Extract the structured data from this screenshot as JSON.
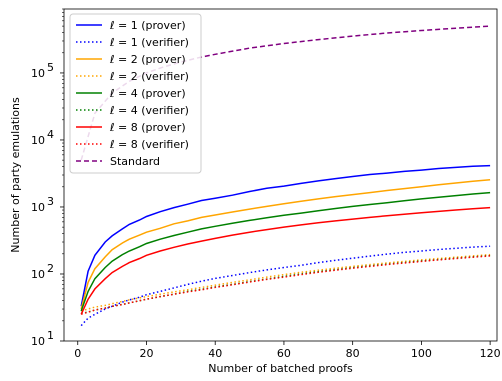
{
  "chart_data": {
    "type": "line",
    "xlabel": "Number of batched proofs",
    "ylabel": "Number of party emulations",
    "yscale": "log",
    "xlim": [
      -4,
      122
    ],
    "ylim": [
      10,
      900000
    ],
    "x_ticks": [
      0,
      20,
      40,
      60,
      80,
      100,
      120
    ],
    "y_ticks": [
      10,
      100,
      1000,
      10000,
      100000
    ],
    "y_tick_labels": [
      {
        "base": "10",
        "exp": "1"
      },
      {
        "base": "10",
        "exp": "2"
      },
      {
        "base": "10",
        "exp": "3"
      },
      {
        "base": "10",
        "exp": "4"
      },
      {
        "base": "10",
        "exp": "5"
      }
    ],
    "grid": false,
    "legend_position": "upper-left",
    "legend": [
      {
        "label": "ℓ = 1 (prover)",
        "color": "#0000ff",
        "style": "solid"
      },
      {
        "label": "ℓ = 1 (verifier)",
        "color": "#0000ff",
        "style": "dotted"
      },
      {
        "label": "ℓ = 2 (prover)",
        "color": "#ffa500",
        "style": "solid"
      },
      {
        "label": "ℓ = 2 (verifier)",
        "color": "#ffa500",
        "style": "dotted"
      },
      {
        "label": "ℓ = 4 (prover)",
        "color": "#008000",
        "style": "solid"
      },
      {
        "label": "ℓ = 4 (verifier)",
        "color": "#008000",
        "style": "dotted"
      },
      {
        "label": "ℓ = 8 (prover)",
        "color": "#ff0000",
        "style": "solid"
      },
      {
        "label": "ℓ = 8 (verifier)",
        "color": "#ff0000",
        "style": "dotted"
      },
      {
        "label": "Standard",
        "color": "#800080",
        "style": "dashed"
      }
    ],
    "series": [
      {
        "name": "ℓ = 1 (prover)",
        "color": "#0000ff",
        "style": "solid",
        "x": [
          1,
          3,
          5,
          8,
          10,
          13,
          15,
          18,
          20,
          24,
          28,
          32,
          36,
          40,
          45,
          50,
          55,
          60,
          65,
          70,
          75,
          80,
          85,
          90,
          95,
          100,
          105,
          110,
          115,
          120
        ],
        "y": [
          33,
          110,
          190,
          300,
          370,
          470,
          550,
          640,
          720,
          850,
          980,
          1100,
          1250,
          1350,
          1500,
          1700,
          1900,
          2050,
          2250,
          2450,
          2650,
          2850,
          3050,
          3200,
          3400,
          3550,
          3750,
          3900,
          4050,
          4150
        ]
      },
      {
        "name": "ℓ = 1 (verifier)",
        "color": "#0000ff",
        "style": "dotted",
        "x": [
          1,
          3,
          5,
          8,
          10,
          13,
          15,
          18,
          20,
          24,
          28,
          32,
          36,
          40,
          45,
          50,
          55,
          60,
          65,
          70,
          75,
          80,
          85,
          90,
          95,
          100,
          105,
          110,
          115,
          120
        ],
        "y": [
          17,
          22,
          25,
          30,
          33,
          38,
          41,
          45,
          49,
          55,
          62,
          70,
          78,
          86,
          95,
          105,
          115,
          125,
          135,
          148,
          160,
          172,
          185,
          198,
          210,
          220,
          232,
          242,
          252,
          260
        ]
      },
      {
        "name": "ℓ = 2 (prover)",
        "color": "#ffa500",
        "style": "solid",
        "x": [
          1,
          3,
          5,
          8,
          10,
          13,
          15,
          18,
          20,
          24,
          28,
          32,
          36,
          40,
          45,
          50,
          55,
          60,
          65,
          70,
          75,
          80,
          85,
          90,
          95,
          100,
          105,
          110,
          115,
          120
        ],
        "y": [
          30,
          75,
          120,
          180,
          230,
          290,
          330,
          380,
          420,
          480,
          560,
          620,
          700,
          760,
          840,
          930,
          1020,
          1120,
          1220,
          1320,
          1430,
          1530,
          1640,
          1760,
          1880,
          2000,
          2140,
          2280,
          2420,
          2550
        ]
      },
      {
        "name": "ℓ = 2 (verifier)",
        "color": "#ffa500",
        "style": "dotted",
        "x": [
          1,
          3,
          5,
          8,
          10,
          13,
          15,
          18,
          20,
          24,
          28,
          32,
          36,
          40,
          45,
          50,
          55,
          60,
          65,
          70,
          75,
          80,
          85,
          90,
          95,
          100,
          105,
          110,
          115,
          120
        ],
        "y": [
          28,
          30,
          32,
          34,
          36,
          39,
          41,
          44,
          46,
          50,
          54,
          58,
          63,
          68,
          75,
          82,
          90,
          98,
          106,
          114,
          122,
          130,
          138,
          146,
          154,
          162,
          170,
          178,
          186,
          195
        ]
      },
      {
        "name": "ℓ = 4 (prover)",
        "color": "#008000",
        "style": "solid",
        "x": [
          1,
          3,
          5,
          8,
          10,
          13,
          15,
          18,
          20,
          24,
          28,
          32,
          36,
          40,
          45,
          50,
          55,
          60,
          65,
          70,
          75,
          80,
          85,
          90,
          95,
          100,
          105,
          110,
          115,
          120
        ],
        "y": [
          28,
          55,
          85,
          125,
          155,
          195,
          220,
          255,
          285,
          330,
          375,
          420,
          470,
          515,
          570,
          630,
          690,
          750,
          810,
          880,
          950,
          1020,
          1090,
          1160,
          1240,
          1320,
          1400,
          1480,
          1560,
          1640
        ]
      },
      {
        "name": "ℓ = 4 (verifier)",
        "color": "#008000",
        "style": "dotted",
        "x": [
          1,
          3,
          5,
          8,
          10,
          13,
          15,
          18,
          20,
          24,
          28,
          32,
          36,
          40,
          45,
          50,
          55,
          60,
          65,
          70,
          75,
          80,
          85,
          90,
          95,
          100,
          105,
          110,
          115,
          120
        ],
        "y": [
          26,
          27,
          29,
          31,
          33,
          35,
          37,
          40,
          42,
          46,
          50,
          55,
          59,
          64,
          70,
          77,
          84,
          92,
          100,
          108,
          116,
          124,
          132,
          140,
          148,
          156,
          164,
          172,
          180,
          188
        ]
      },
      {
        "name": "ℓ = 8 (prover)",
        "color": "#ff0000",
        "style": "solid",
        "x": [
          1,
          3,
          5,
          8,
          10,
          13,
          15,
          18,
          20,
          24,
          28,
          32,
          36,
          40,
          45,
          50,
          55,
          60,
          65,
          70,
          75,
          80,
          85,
          90,
          95,
          100,
          105,
          110,
          115,
          120
        ],
        "y": [
          25,
          42,
          60,
          85,
          105,
          130,
          148,
          170,
          190,
          220,
          250,
          280,
          310,
          340,
          380,
          420,
          460,
          500,
          540,
          580,
          620,
          660,
          700,
          740,
          780,
          820,
          860,
          900,
          940,
          980
        ]
      },
      {
        "name": "ℓ = 8 (verifier)",
        "color": "#ff0000",
        "style": "dotted",
        "x": [
          1,
          3,
          5,
          8,
          10,
          13,
          15,
          18,
          20,
          24,
          28,
          32,
          36,
          40,
          45,
          50,
          55,
          60,
          65,
          70,
          75,
          80,
          85,
          90,
          95,
          100,
          105,
          110,
          115,
          120
        ],
        "y": [
          25,
          27,
          29,
          31,
          33,
          35,
          37,
          40,
          42,
          46,
          50,
          54,
          58,
          63,
          69,
          76,
          83,
          90,
          98,
          106,
          114,
          122,
          130,
          138,
          146,
          154,
          162,
          170,
          178,
          186
        ]
      },
      {
        "name": "Standard",
        "color": "#800080",
        "style": "dashed",
        "x": [
          1,
          5,
          10,
          15,
          20,
          25,
          30,
          35,
          40,
          50,
          60,
          70,
          80,
          90,
          100,
          110,
          120
        ],
        "y": [
          5000,
          25000,
          50000,
          75000,
          100000,
          123000,
          145000,
          168000,
          190000,
          235000,
          275000,
          315000,
          355000,
          395000,
          430000,
          465000,
          500000
        ]
      }
    ]
  }
}
